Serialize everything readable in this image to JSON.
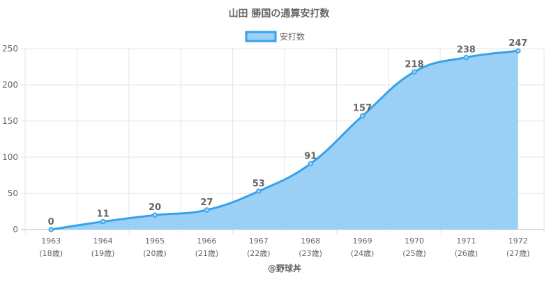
{
  "chart_data": {
    "type": "area",
    "title": "山田 勝国の通算安打数",
    "categories": [
      "1963",
      "1964",
      "1965",
      "1966",
      "1967",
      "1968",
      "1969",
      "1970",
      "1971",
      "1972"
    ],
    "sublabels": [
      "(18歳)",
      "(19歳)",
      "(20歳)",
      "(21歳)",
      "(22歳)",
      "(23歳)",
      "(24歳)",
      "(25歳)",
      "(26歳)",
      "(27歳)"
    ],
    "series": [
      {
        "name": "安打数",
        "values": [
          0,
          11,
          20,
          27,
          53,
          91,
          157,
          218,
          238,
          247
        ]
      }
    ],
    "ylim": [
      0,
      250
    ],
    "yticks": [
      0,
      50,
      100,
      150,
      200,
      250
    ],
    "grid": true,
    "legend": "top",
    "xlabel": "@野球丼",
    "colors": {
      "line": "#36a2eb",
      "fill": "#9ad0f5",
      "grid": "#e5e5e5",
      "text": "#666666"
    }
  }
}
